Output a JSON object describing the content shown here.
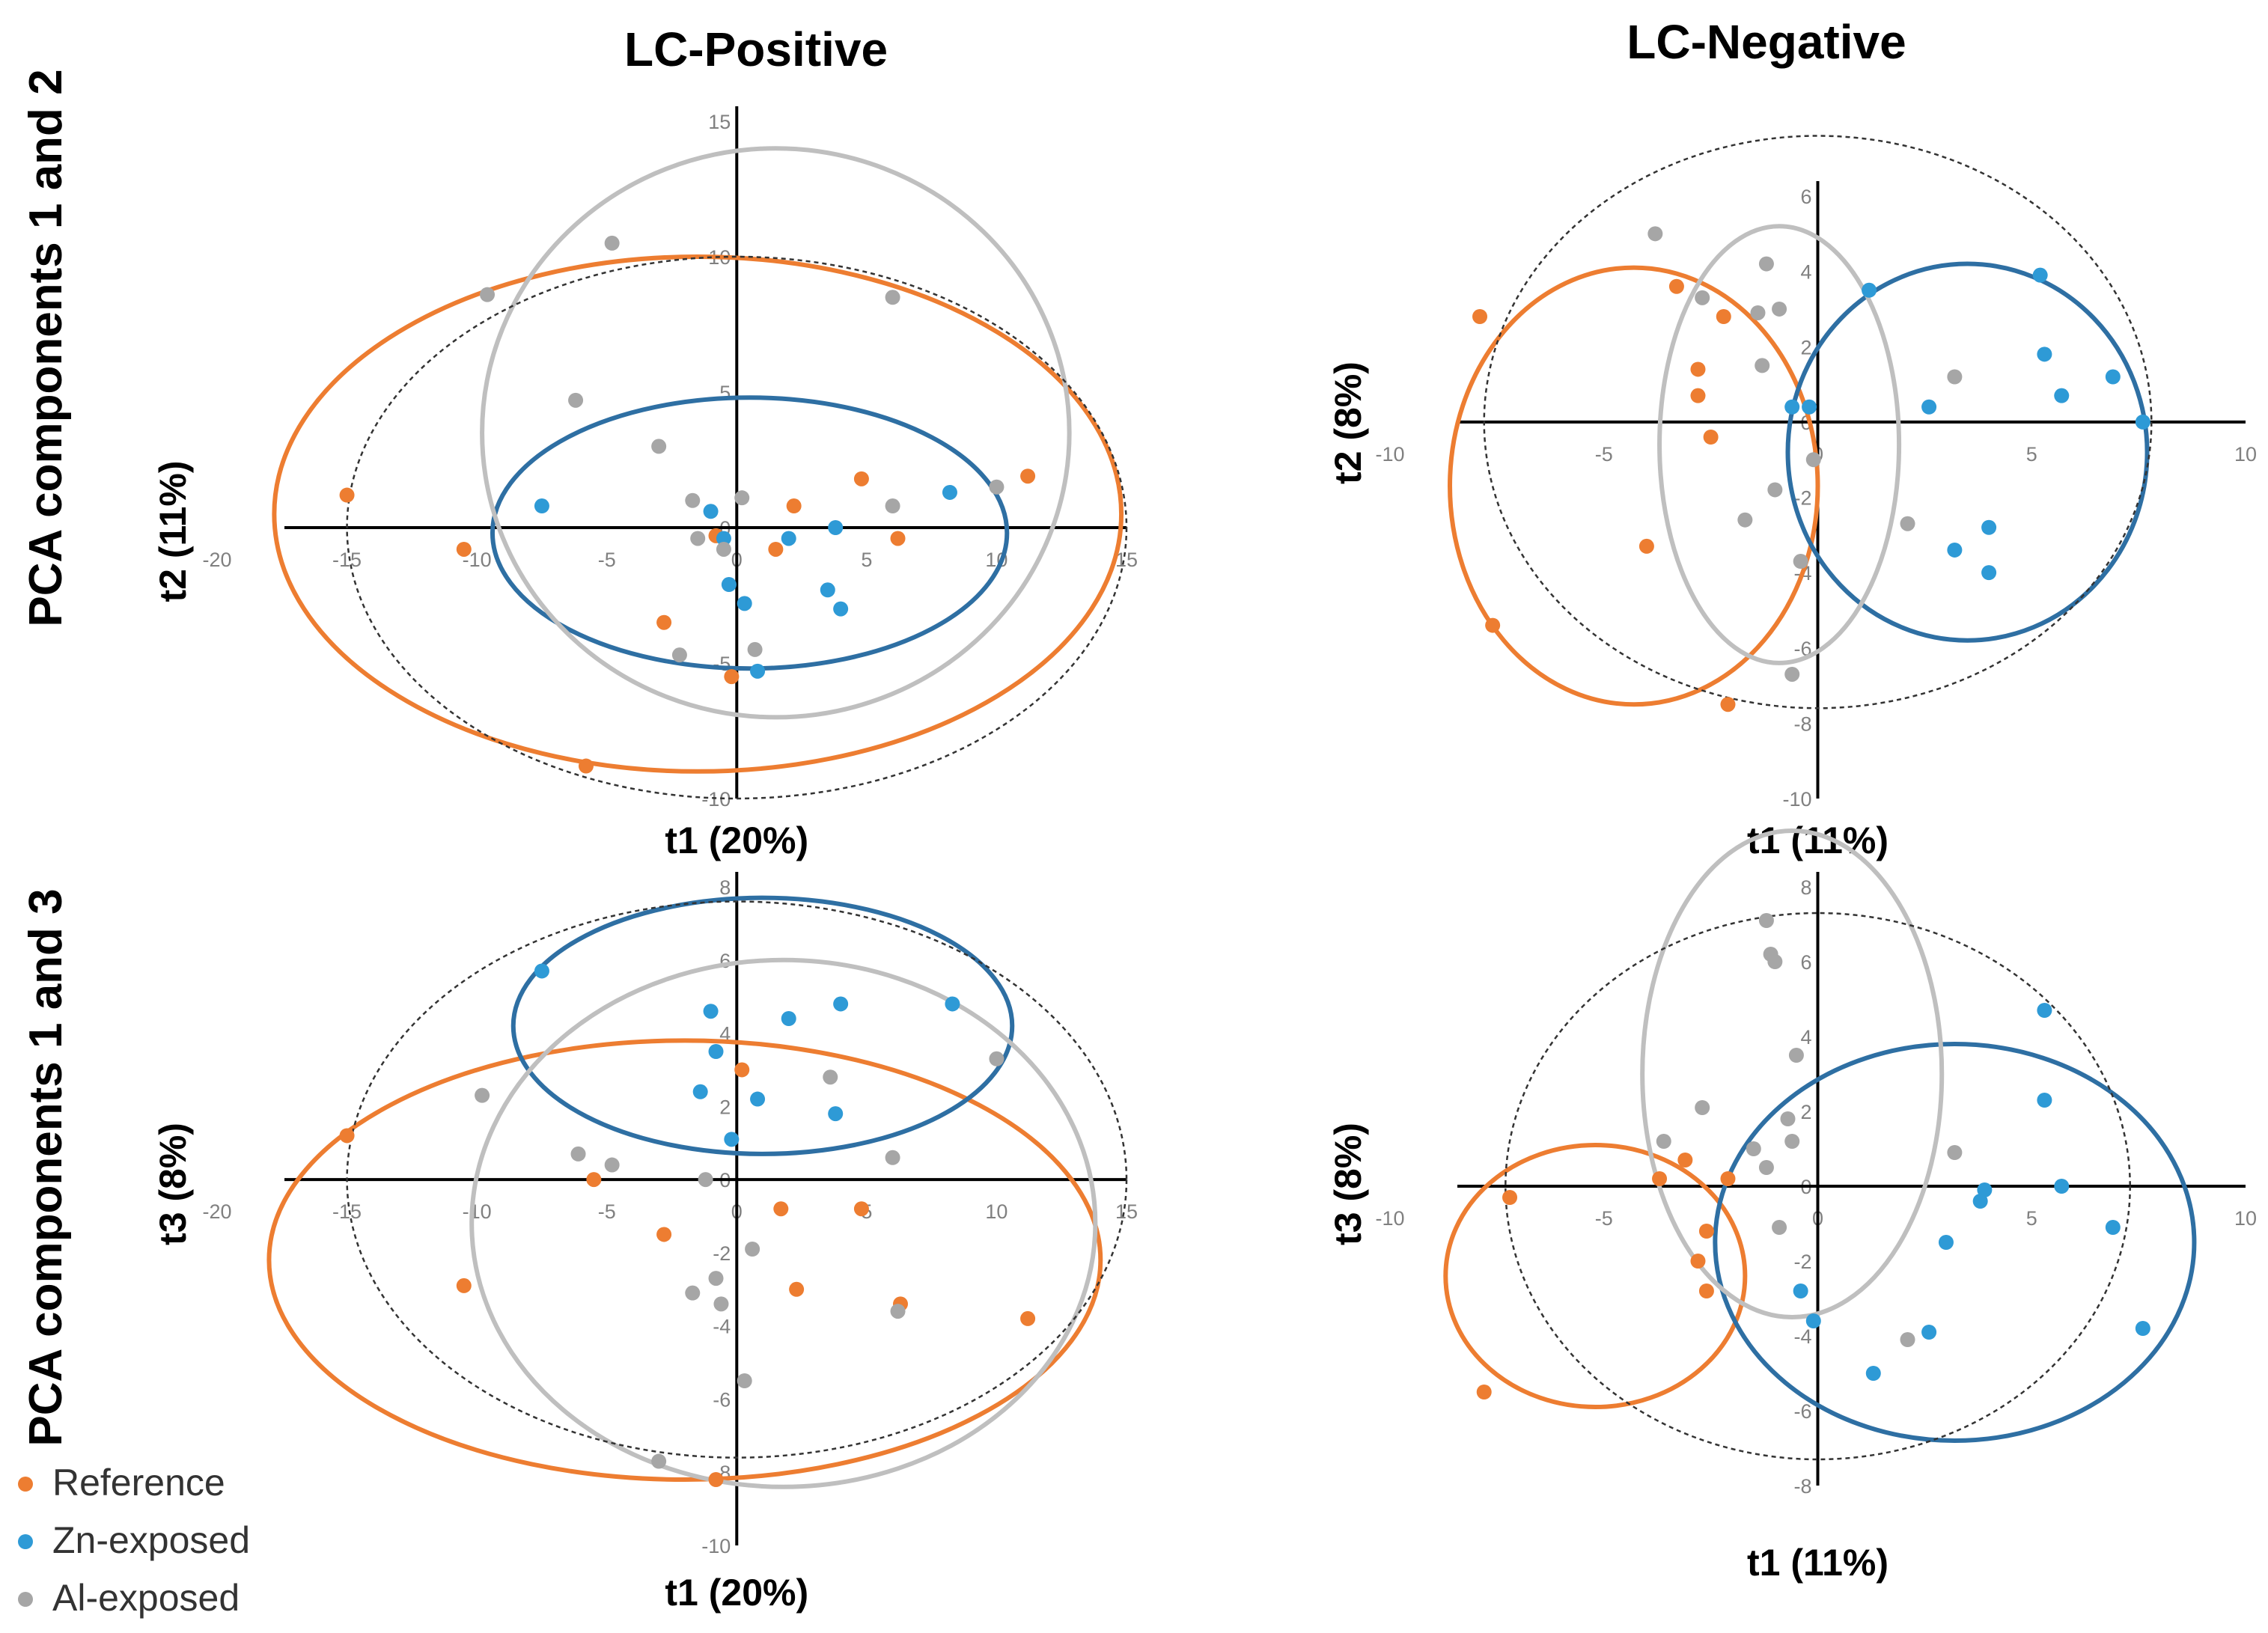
{
  "column_titles": [
    "LC-Positive",
    "LC-Negative"
  ],
  "row_titles": [
    "PCA components 1 and 2",
    "PCA components 1 and 3"
  ],
  "legend": {
    "position": "bottom-left",
    "items": [
      {
        "label": "Reference",
        "color": "#ED7D31"
      },
      {
        "label": "Zn-exposed",
        "color": "#2E9AD6"
      },
      {
        "label": "Al-exposed",
        "color": "#A6A6A6"
      }
    ]
  },
  "colors": {
    "reference_ellipse": "#ED7D31",
    "zn_ellipse": "#2E6FA3",
    "al_ellipse": "#BFBFBF",
    "hotelling": "#333333"
  },
  "chart_data": [
    {
      "type": "scatter",
      "panel": "LC-Positive, components 1 and 2",
      "xlabel": "t1 (20%)",
      "ylabel": "t2 (11%)",
      "xlim": [
        -20,
        15
      ],
      "ylim": [
        -10,
        15
      ],
      "xticks": [
        -20,
        -15,
        -10,
        -5,
        0,
        5,
        10,
        15
      ],
      "yticks": [
        -10,
        -5,
        0,
        5,
        10,
        15
      ],
      "series": [
        {
          "name": "Reference",
          "color": "#ED7D31",
          "x": [
            -15.0,
            -10.5,
            -2.8,
            -0.8,
            -0.2,
            1.5,
            2.2,
            4.8,
            6.2,
            11.2,
            -5.8
          ],
          "y": [
            1.2,
            -0.8,
            -3.5,
            -0.3,
            -5.5,
            -0.8,
            0.8,
            1.8,
            -0.4,
            1.9,
            -8.8
          ]
        },
        {
          "name": "Zn-exposed",
          "color": "#2E9AD6",
          "x": [
            -7.5,
            -1.0,
            -0.5,
            -0.3,
            0.3,
            0.8,
            2.0,
            3.5,
            3.8,
            4.0,
            8.2
          ],
          "y": [
            0.8,
            0.6,
            -0.4,
            -2.1,
            -2.8,
            -5.3,
            -0.4,
            -2.3,
            0.0,
            -3.0,
            1.3
          ]
        },
        {
          "name": "Al-exposed",
          "color": "#A6A6A6",
          "x": [
            -9.6,
            -4.8,
            -6.2,
            -3.0,
            -1.5,
            -1.7,
            -0.5,
            0.2,
            0.7,
            6.0,
            10.0,
            -2.2,
            6.0
          ],
          "y": [
            8.6,
            10.5,
            4.7,
            3.0,
            -0.4,
            1.0,
            -0.8,
            1.1,
            -4.5,
            8.5,
            1.5,
            -4.7,
            0.8
          ]
        }
      ],
      "ellipses": [
        {
          "group": "Reference",
          "cx": -1.5,
          "cy": 0.5,
          "rx": 16.3,
          "ry": 9.5
        },
        {
          "group": "Zn-exposed",
          "cx": 0.5,
          "cy": -0.2,
          "rx": 9.9,
          "ry": 5.0
        },
        {
          "group": "Al-exposed",
          "cx": 1.5,
          "cy": 3.5,
          "rx": 11.3,
          "ry": 10.5
        },
        {
          "group": "Hotelling",
          "cx": 0,
          "cy": 0,
          "rx": 15.0,
          "ry": 10.0
        }
      ]
    },
    {
      "type": "scatter",
      "panel": "LC-Negative, components 1 and 2",
      "xlabel": "t1 (11%)",
      "ylabel": "t2 (8%)",
      "xlim": [
        -10,
        10
      ],
      "ylim": [
        -10,
        6
      ],
      "xticks": [
        -10,
        -5,
        0,
        5,
        10
      ],
      "yticks": [
        -10,
        -8,
        -6,
        -4,
        -2,
        0,
        2,
        4,
        6
      ],
      "series": [
        {
          "name": "Reference",
          "color": "#ED7D31",
          "x": [
            -7.9,
            -7.6,
            -3.3,
            -2.8,
            -2.8,
            -2.5,
            -2.2,
            -4.0,
            -2.1
          ],
          "y": [
            2.8,
            -5.4,
            3.6,
            1.4,
            0.7,
            -0.4,
            2.8,
            -3.3,
            -7.5
          ]
        },
        {
          "name": "Zn-exposed",
          "color": "#2E9AD6",
          "x": [
            1.2,
            5.2,
            5.3,
            5.7,
            6.9,
            7.6,
            2.6,
            3.2,
            4.0,
            4.0,
            -0.2,
            -0.6
          ],
          "y": [
            3.5,
            3.9,
            1.8,
            0.7,
            1.2,
            0.0,
            0.4,
            -3.4,
            -2.8,
            -4.0,
            0.4,
            0.4
          ]
        },
        {
          "name": "Al-exposed",
          "color": "#A6A6A6",
          "x": [
            -3.8,
            -2.7,
            -1.4,
            -1.2,
            -0.9,
            -1.3,
            -0.1,
            -1.7,
            -0.4,
            -0.6,
            3.2,
            2.1,
            -1.0
          ],
          "y": [
            5.0,
            3.3,
            2.9,
            4.2,
            3.0,
            1.5,
            -1.0,
            -2.6,
            -3.7,
            -6.7,
            1.2,
            -2.7,
            -1.8
          ]
        }
      ],
      "ellipses": [
        {
          "group": "Reference",
          "cx": -4.3,
          "cy": -1.7,
          "rx": 4.3,
          "ry": 5.8
        },
        {
          "group": "Zn-exposed",
          "cx": 3.5,
          "cy": -0.8,
          "rx": 4.2,
          "ry": 5.0
        },
        {
          "group": "Al-exposed",
          "cx": -0.9,
          "cy": -0.6,
          "rx": 2.8,
          "ry": 5.8
        },
        {
          "group": "Hotelling",
          "cx": 0,
          "cy": 0,
          "rx": 7.8,
          "ry": 7.6
        }
      ]
    },
    {
      "type": "scatter",
      "panel": "LC-Positive, components 1 and 3",
      "xlabel": "t1 (20%)",
      "ylabel": "t3 (8%)",
      "xlim": [
        -20,
        15
      ],
      "ylim": [
        -10,
        8
      ],
      "xticks": [
        -20,
        -15,
        -10,
        -5,
        0,
        5,
        10,
        15
      ],
      "yticks": [
        -10,
        -8,
        -6,
        -4,
        -2,
        0,
        2,
        4,
        6,
        8
      ],
      "series": [
        {
          "name": "Reference",
          "color": "#ED7D31",
          "x": [
            -15.0,
            -10.5,
            -5.5,
            -2.8,
            0.2,
            1.7,
            2.3,
            4.8,
            6.3,
            11.2,
            -0.8
          ],
          "y": [
            1.2,
            -2.9,
            0.0,
            -1.5,
            3.0,
            -0.8,
            -3.0,
            -0.8,
            -3.4,
            -3.8,
            -8.2
          ]
        },
        {
          "name": "Zn-exposed",
          "color": "#2E9AD6",
          "x": [
            -7.5,
            -1.0,
            -0.8,
            -1.4,
            -0.2,
            0.8,
            2.0,
            3.8,
            4.0,
            8.3
          ],
          "y": [
            5.7,
            4.6,
            3.5,
            2.4,
            1.1,
            2.2,
            4.4,
            1.8,
            4.8,
            4.8
          ]
        },
        {
          "name": "Al-exposed",
          "color": "#A6A6A6",
          "x": [
            -9.8,
            -6.1,
            -4.8,
            -1.2,
            0.6,
            -0.8,
            -1.7,
            -0.6,
            0.3,
            -3.0,
            3.6,
            6.0,
            10.0,
            6.2
          ],
          "y": [
            2.3,
            0.7,
            0.4,
            0.0,
            -1.9,
            -2.7,
            -3.1,
            -3.4,
            -5.5,
            -7.7,
            2.8,
            0.6,
            3.3,
            -3.6
          ]
        }
      ],
      "ellipses": [
        {
          "group": "Reference",
          "cx": -2.0,
          "cy": -2.2,
          "rx": 16.0,
          "ry": 6.0
        },
        {
          "group": "Zn-exposed",
          "cx": 1.0,
          "cy": 4.2,
          "rx": 9.6,
          "ry": 3.5
        },
        {
          "group": "Al-exposed",
          "cx": 1.8,
          "cy": -1.2,
          "rx": 12.0,
          "ry": 7.2
        },
        {
          "group": "Hotelling",
          "cx": 0,
          "cy": 0,
          "rx": 15.0,
          "ry": 7.6
        }
      ]
    },
    {
      "type": "scatter",
      "panel": "LC-Negative, components 1 and 3",
      "xlabel": "t1 (11%)",
      "ylabel": "t3 (8%)",
      "xlim": [
        -10,
        10
      ],
      "ylim": [
        -8,
        8
      ],
      "xticks": [
        -10,
        -5,
        0,
        5,
        10
      ],
      "yticks": [
        -8,
        -6,
        -4,
        -2,
        0,
        2,
        4,
        6,
        8
      ],
      "series": [
        {
          "name": "Reference",
          "color": "#ED7D31",
          "x": [
            -7.2,
            -7.8,
            -3.7,
            -3.1,
            -2.1,
            -2.6,
            -2.8,
            -2.6
          ],
          "y": [
            -0.3,
            -5.5,
            0.2,
            0.7,
            0.2,
            -1.2,
            -2.0,
            -2.8
          ]
        },
        {
          "name": "Zn-exposed",
          "color": "#2E9AD6",
          "x": [
            5.3,
            5.3,
            5.7,
            6.9,
            7.6,
            3.8,
            3.9,
            3.0,
            2.6,
            1.3,
            -0.4,
            -0.1
          ],
          "y": [
            4.7,
            2.3,
            0.0,
            -1.1,
            -3.8,
            -0.4,
            -0.1,
            -1.5,
            -3.9,
            -5.0,
            -2.8,
            -3.6
          ]
        },
        {
          "name": "Al-exposed",
          "color": "#A6A6A6",
          "x": [
            -1.2,
            -1.1,
            -1.0,
            -0.5,
            -0.7,
            -2.7,
            -3.6,
            -1.5,
            -1.2,
            -0.9,
            3.2,
            2.1,
            -0.6
          ],
          "y": [
            7.1,
            6.2,
            6.0,
            3.5,
            1.8,
            2.1,
            1.2,
            1.0,
            0.5,
            -1.1,
            0.9,
            -4.1,
            1.2
          ]
        }
      ],
      "ellipses": [
        {
          "group": "Reference",
          "cx": -5.2,
          "cy": -2.4,
          "rx": 3.5,
          "ry": 3.5
        },
        {
          "group": "Zn-exposed",
          "cx": 3.2,
          "cy": -1.5,
          "rx": 5.6,
          "ry": 5.3
        },
        {
          "group": "Al-exposed",
          "cx": -0.6,
          "cy": 3.0,
          "rx": 3.5,
          "ry": 6.5
        },
        {
          "group": "Hotelling",
          "cx": 0,
          "cy": 0,
          "rx": 7.3,
          "ry": 7.3
        }
      ]
    }
  ]
}
